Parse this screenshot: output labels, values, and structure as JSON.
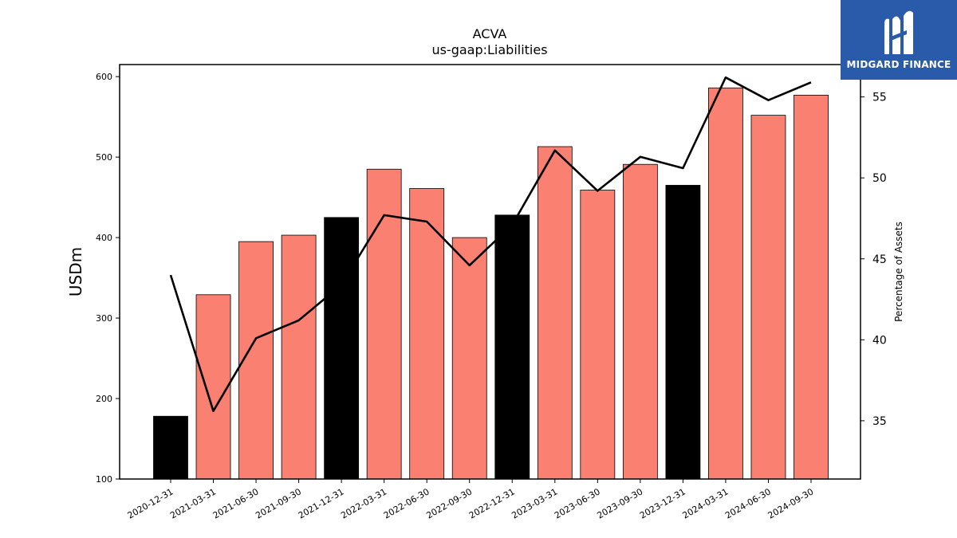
{
  "chart_data": {
    "type": "bar",
    "title": "ACVA",
    "subtitle": "us-gaap:Liabilities",
    "ylabel": "USDm",
    "ylabel_right": "Percentage of Assets",
    "ylim": [
      100,
      615
    ],
    "ylim_right": [
      31.4,
      57.0
    ],
    "yticks": [
      100,
      200,
      300,
      400,
      500,
      600
    ],
    "yticks_right": [
      35,
      40,
      45,
      50,
      55
    ],
    "categories": [
      "2020-12-31",
      "2021-03-31",
      "2021-06-30",
      "2021-09-30",
      "2021-12-31",
      "2022-03-31",
      "2022-06-30",
      "2022-09-30",
      "2022-12-31",
      "2023-03-31",
      "2023-06-30",
      "2023-09-30",
      "2023-12-31",
      "2024-03-31",
      "2024-06-30",
      "2024-09-30"
    ],
    "series": [
      {
        "values": [
          178,
          329,
          395,
          403,
          425,
          485,
          461,
          400,
          428,
          513,
          459,
          491,
          465,
          586,
          552,
          577
        ],
        "colors": [
          "#000000",
          "#fa8072",
          "#fa8072",
          "#fa8072",
          "#000000",
          "#fa8072",
          "#fa8072",
          "#fa8072",
          "#000000",
          "#fa8072",
          "#fa8072",
          "#fa8072",
          "#000000",
          "#fa8072",
          "#fa8072",
          "#fa8072"
        ]
      },
      {
        "type": "line",
        "axis": "right",
        "color": "#000000",
        "values": [
          44.0,
          35.6,
          40.1,
          41.2,
          43.4,
          47.7,
          47.3,
          44.6,
          47.1,
          51.7,
          49.2,
          51.3,
          50.6,
          56.2,
          54.8,
          55.9
        ]
      }
    ],
    "grid": false,
    "legend": "none"
  },
  "logo": {
    "text": "MIDGARD FINANCE",
    "bg": "#2a5bab"
  }
}
